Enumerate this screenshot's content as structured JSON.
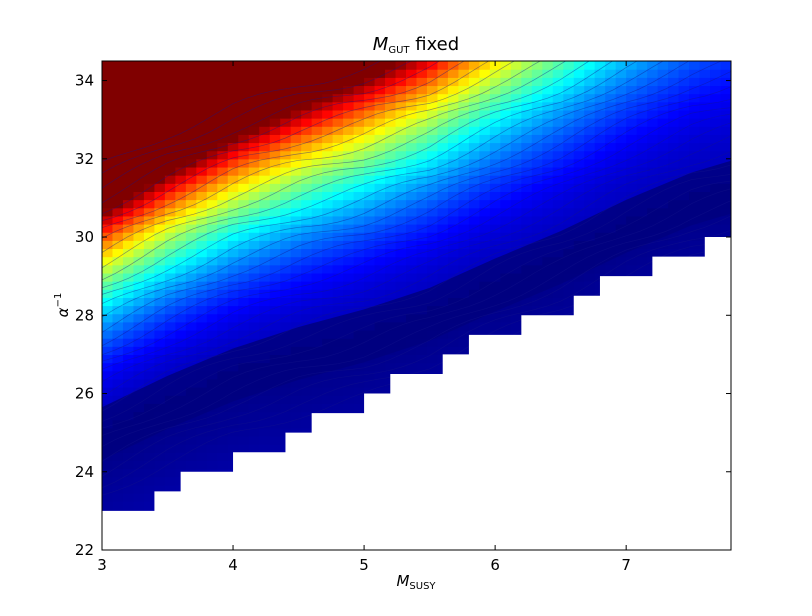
{
  "chart_data": {
    "type": "heatmap",
    "title_main": "M",
    "title_sub": "GUT",
    "title_rest": " fixed",
    "xlabel_main": "M",
    "xlabel_sub": "SUSY",
    "ylabel_main": "α",
    "ylabel_sup": "−1",
    "xlim": [
      3.0,
      7.8
    ],
    "ylim": [
      22.0,
      34.5
    ],
    "x_ticks": [
      "3",
      "4",
      "5",
      "6",
      "7"
    ],
    "y_ticks": [
      "22",
      "24",
      "26",
      "28",
      "30",
      "32",
      "34"
    ],
    "colormap": "jet",
    "grid": false,
    "boundary_steps": [
      {
        "x": 3.0,
        "y": 23.0
      },
      {
        "x": 3.4,
        "y": 23.5
      },
      {
        "x": 3.6,
        "y": 24.0
      },
      {
        "x": 4.0,
        "y": 24.5
      },
      {
        "x": 4.4,
        "y": 25.0
      },
      {
        "x": 4.6,
        "y": 25.5
      },
      {
        "x": 5.0,
        "y": 26.0
      },
      {
        "x": 5.2,
        "y": 26.5
      },
      {
        "x": 5.6,
        "y": 27.0
      },
      {
        "x": 5.8,
        "y": 27.5
      },
      {
        "x": 6.2,
        "y": 28.0
      },
      {
        "x": 6.6,
        "y": 28.5
      },
      {
        "x": 6.8,
        "y": 29.0
      },
      {
        "x": 7.2,
        "y": 29.5
      },
      {
        "x": 7.6,
        "y": 30.0
      },
      {
        "x": 7.8,
        "y": 30.0
      }
    ],
    "ridge_line": [
      {
        "x": 3.0,
        "y": 25.1
      },
      {
        "x": 3.5,
        "y": 25.9
      },
      {
        "x": 4.0,
        "y": 26.6
      },
      {
        "x": 4.5,
        "y": 27.15
      },
      {
        "x": 5.0,
        "y": 27.6
      },
      {
        "x": 5.5,
        "y": 28.15
      },
      {
        "x": 6.0,
        "y": 28.9
      },
      {
        "x": 6.5,
        "y": 29.6
      },
      {
        "x": 7.0,
        "y": 30.4
      },
      {
        "x": 7.5,
        "y": 31.1
      },
      {
        "x": 7.8,
        "y": 31.4
      }
    ],
    "colors": {
      "background": "#ffffff",
      "deep": "#00007f",
      "blue": "#0000ff",
      "cyan": "#00ffff",
      "yellow": "#ffff00",
      "red": "#ff0000"
    }
  }
}
